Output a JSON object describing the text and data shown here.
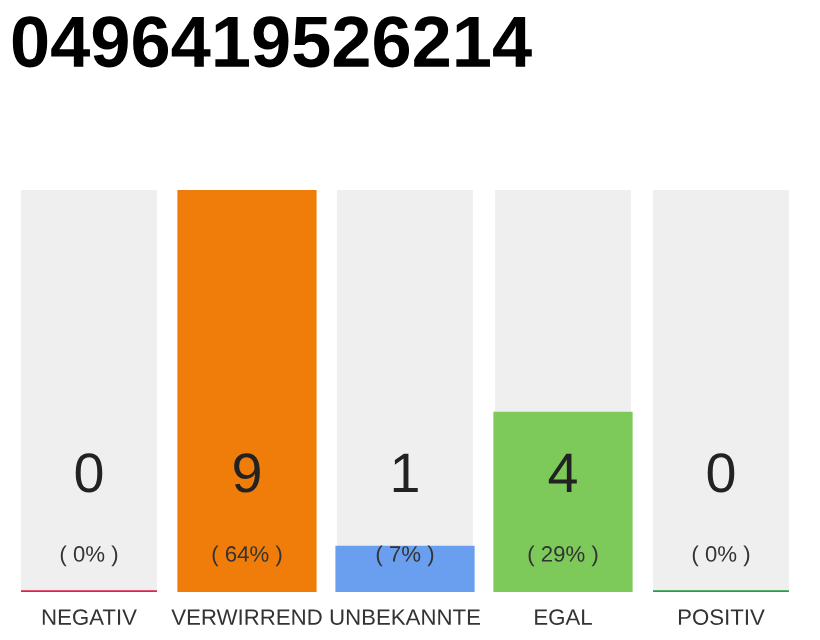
{
  "chart_data": {
    "type": "bar",
    "title": "0496419526214",
    "categories": [
      "NEGATIV",
      "VERWIRREND",
      "UNBEKANNTE",
      "EGAL",
      "POSITIV"
    ],
    "values": [
      0,
      9,
      1,
      4,
      0
    ],
    "colors": [
      "#e0204a",
      "#f07d0a",
      "#6a9ff0",
      "#7dc95a",
      "#20a040"
    ],
    "value_labels": [
      "0\n( 0% )",
      "9\n( 64% )",
      "1\n( 7% )",
      "4\n( 29% )",
      "0\n( 0% )"
    ],
    "grid": false,
    "legend": false
  }
}
